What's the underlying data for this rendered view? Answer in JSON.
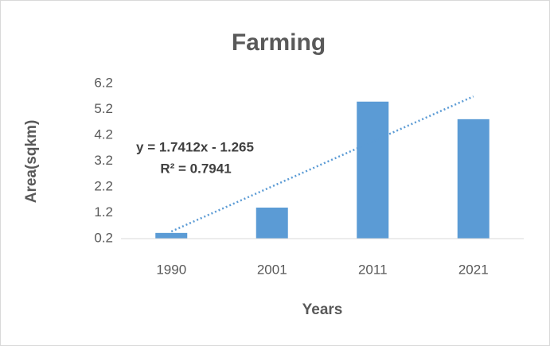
{
  "chart_data": {
    "type": "bar",
    "title": "Farming",
    "x_label": "Years",
    "y_label": "Area(sqkm)",
    "categories": [
      "1990",
      "2001",
      "2011",
      "2021"
    ],
    "values": [
      0.42,
      1.4,
      5.5,
      4.82
    ],
    "color": "#5b9bd5",
    "ylim": [
      0.2,
      6.2
    ],
    "yticks": [
      0.2,
      1.2,
      2.2,
      3.2,
      4.2,
      5.2,
      6.2
    ],
    "grid": false,
    "trendline": {
      "slope": 1.7412,
      "intercept": -1.265,
      "color": "#5b9bd5",
      "equation": "y = 1.7412x - 1.265",
      "r_squared": "R² = 0.7941"
    }
  }
}
